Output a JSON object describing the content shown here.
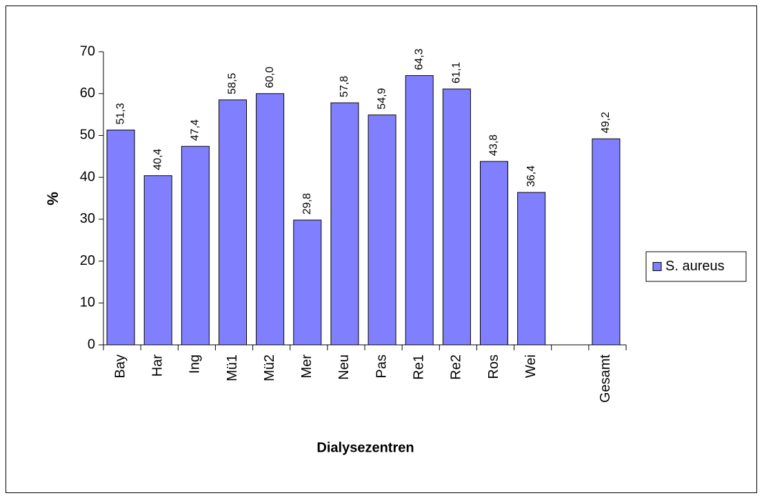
{
  "chart_data": {
    "type": "bar",
    "x_label": "Dialysezentren",
    "y_label": "%",
    "categories": [
      "Bay",
      "Har",
      "Ing",
      "Mü1",
      "Mü2",
      "Mer",
      "Neu",
      "Pas",
      "Re1",
      "Re2",
      "Ros",
      "Wei",
      null,
      "Gesamt"
    ],
    "series": [
      {
        "name": "S. aureus",
        "color": "#8080ff",
        "values": [
          51.3,
          40.4,
          47.4,
          58.5,
          60.0,
          29.8,
          57.8,
          54.9,
          64.3,
          61.1,
          43.8,
          36.4,
          null,
          49.2
        ],
        "value_labels": [
          "51,3",
          "40,4",
          "47,4",
          "58,5",
          "60,0",
          "29,8",
          "57,8",
          "54,9",
          "64,3",
          "61,1",
          "43,8",
          "36,4",
          null,
          "49,2"
        ]
      }
    ],
    "ylim": [
      0,
      70
    ],
    "yticks": [
      0,
      10,
      20,
      30,
      40,
      50,
      60,
      70
    ],
    "grid": false,
    "legend": "right"
  }
}
